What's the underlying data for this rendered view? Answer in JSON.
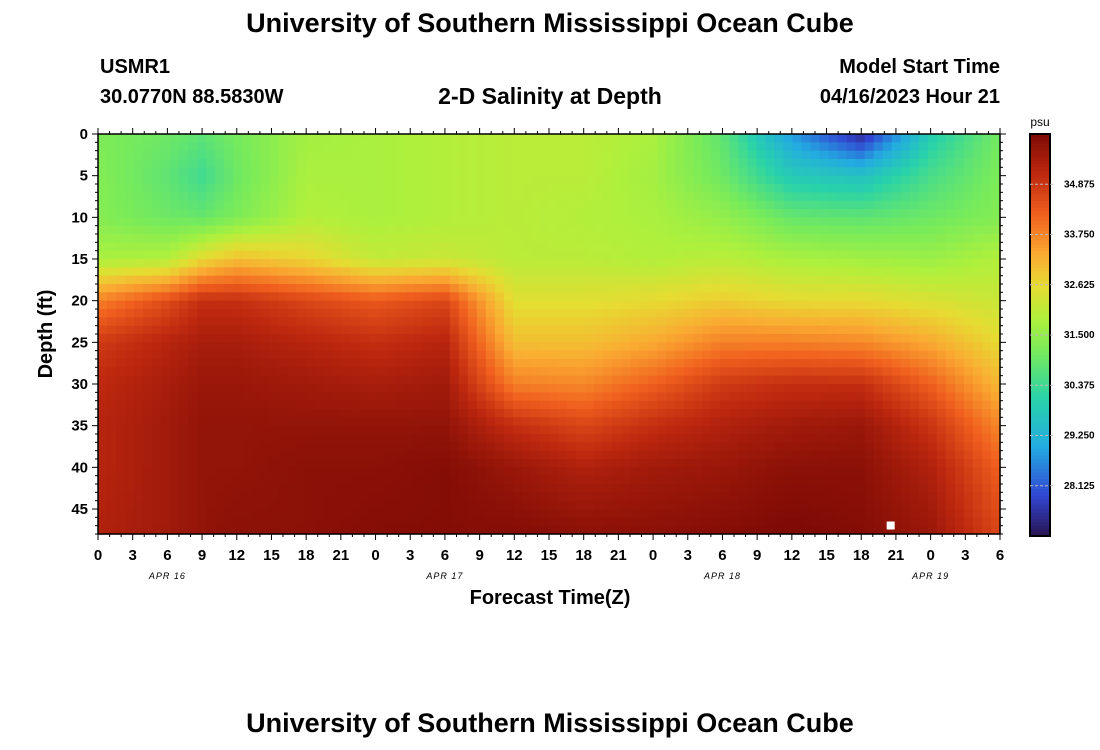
{
  "page": {
    "title": "University of Southern Mississippi Ocean Cube",
    "footer_title": "University of Southern Mississippi Ocean Cube",
    "station_id": "USMR1",
    "station_coords": "30.0770N  88.5830W",
    "subtitle": "2-D Salinity at Depth",
    "model_start_label": "Model Start Time",
    "model_start_value": "04/16/2023 Hour 21"
  },
  "chart_data": {
    "type": "heatmap",
    "title": "2-D Salinity at Depth",
    "xlabel": "Forecast Time(Z)",
    "ylabel": "Depth (ft)",
    "x_tick_labels": [
      "0",
      "3",
      "6",
      "9",
      "12",
      "15",
      "18",
      "21",
      "0",
      "3",
      "6",
      "9",
      "12",
      "15",
      "18",
      "21",
      "0",
      "3",
      "6",
      "9",
      "12",
      "15",
      "18",
      "21",
      "0",
      "3",
      "6"
    ],
    "date_labels": [
      {
        "label": "APR 16",
        "hour_index": 6
      },
      {
        "label": "APR 17",
        "hour_index": 30
      },
      {
        "label": "APR 18",
        "hour_index": 54
      },
      {
        "label": "APR 19",
        "hour_index": 72
      }
    ],
    "x_range_hours": [
      0,
      78
    ],
    "y_tick_labels": [
      "0",
      "5",
      "10",
      "15",
      "20",
      "25",
      "30",
      "35",
      "40",
      "45"
    ],
    "y_range_ft": [
      0,
      48
    ],
    "colorbar": {
      "unit": "psu",
      "range": [
        27.0,
        36.0
      ],
      "tick_labels": [
        "34.875",
        "33.750",
        "32.625",
        "31.500",
        "30.375",
        "29.250",
        "28.125"
      ],
      "tick_values": [
        34.875,
        33.75,
        32.625,
        31.5,
        30.375,
        29.25,
        28.125
      ]
    },
    "salinity_profiles": {
      "description_units": "psu at depth (ft)",
      "depths_ft": [
        0,
        5,
        10,
        15,
        20,
        25,
        30,
        35,
        40,
        48
      ],
      "hours": [
        0,
        6,
        9,
        12,
        18,
        24,
        30,
        36,
        42,
        48,
        54,
        60,
        66,
        72,
        78
      ],
      "values": [
        [
          31.2,
          31.3,
          31.3,
          31.8,
          33.8,
          34.8,
          35.1,
          35.2,
          35.2,
          35.3
        ],
        [
          31.0,
          30.8,
          31.0,
          31.9,
          34.5,
          35.2,
          35.4,
          35.5,
          35.5,
          35.5
        ],
        [
          30.8,
          30.4,
          30.9,
          32.6,
          35.0,
          35.4,
          35.6,
          35.7,
          35.7,
          35.7
        ],
        [
          31.1,
          31.0,
          31.2,
          33.0,
          35.0,
          35.4,
          35.6,
          35.7,
          35.7,
          35.8
        ],
        [
          31.7,
          31.8,
          31.9,
          32.7,
          34.6,
          35.2,
          35.5,
          35.7,
          35.8,
          35.8
        ],
        [
          31.8,
          31.8,
          31.8,
          32.1,
          34.3,
          35.0,
          35.4,
          35.7,
          35.8,
          35.9
        ],
        [
          31.9,
          31.9,
          31.9,
          32.2,
          34.6,
          35.2,
          35.5,
          35.7,
          35.9,
          35.9
        ],
        [
          32.0,
          32.0,
          32.0,
          32.0,
          32.5,
          33.0,
          33.8,
          35.0,
          35.6,
          35.9
        ],
        [
          32.0,
          32.0,
          31.9,
          32.0,
          32.5,
          33.0,
          33.7,
          34.6,
          35.3,
          35.8
        ],
        [
          31.8,
          31.7,
          31.8,
          31.9,
          32.6,
          33.3,
          34.2,
          35.0,
          35.5,
          35.8
        ],
        [
          30.8,
          31.0,
          31.5,
          32.0,
          32.8,
          33.8,
          34.8,
          35.3,
          35.6,
          35.9
        ],
        [
          28.8,
          29.8,
          30.9,
          31.8,
          32.6,
          33.8,
          35.0,
          35.5,
          35.8,
          36.0
        ],
        [
          27.4,
          29.6,
          30.8,
          31.7,
          32.6,
          33.7,
          35.0,
          35.6,
          35.8,
          35.9
        ],
        [
          29.9,
          30.5,
          31.0,
          31.6,
          32.4,
          33.3,
          34.2,
          34.9,
          35.3,
          35.6
        ],
        [
          31.1,
          31.2,
          31.3,
          31.9,
          32.2,
          32.6,
          33.1,
          33.7,
          34.2,
          34.6
        ]
      ]
    }
  }
}
